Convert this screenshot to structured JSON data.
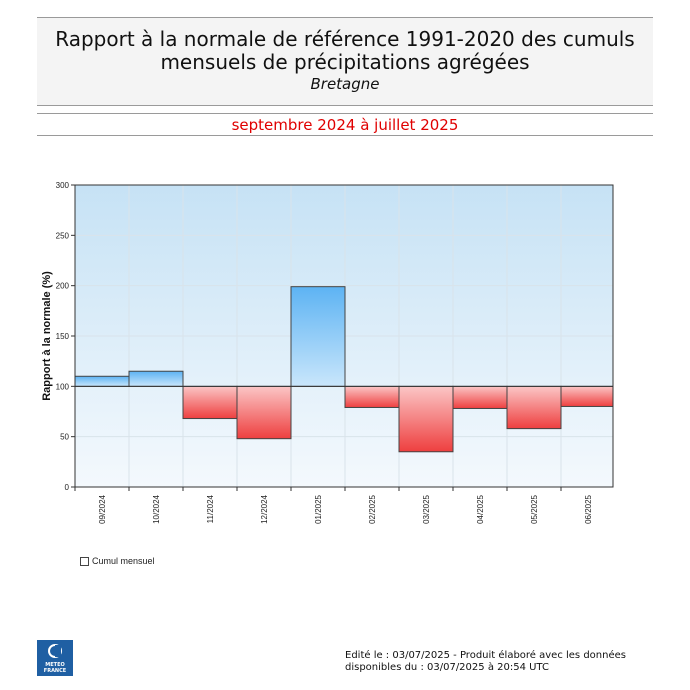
{
  "header": {
    "title_line1": "Rapport à la normale de référence 1991-2020 des cumuls",
    "title_line2": "mensuels de précipitations agrégées",
    "region": "Bretagne",
    "period": "septembre 2024 à juillet 2025"
  },
  "chart_data": {
    "type": "bar",
    "ylabel": "Rapport à la normale (%)",
    "xlabel": "",
    "ylim": [
      0,
      300
    ],
    "yticks": [
      0,
      50,
      100,
      150,
      200,
      250,
      300
    ],
    "baseline": 100,
    "grid": true,
    "categories": [
      "09/2024",
      "10/2024",
      "11/2024",
      "12/2024",
      "01/2025",
      "02/2025",
      "03/2025",
      "04/2025",
      "05/2025",
      "06/2025"
    ],
    "series": [
      {
        "name": "Cumul mensuel",
        "values": [
          110,
          115,
          68,
          48,
          199,
          79,
          35,
          78,
          58,
          80
        ]
      }
    ],
    "legend_position": "bottom-left",
    "colors": {
      "above": "#5fb4f2",
      "below": "#f04848",
      "bg_top": "#c8e3f5",
      "bg_bottom": "#f2f8fd"
    }
  },
  "legend": {
    "label": "Cumul mensuel"
  },
  "logo": {
    "line1": "METEO",
    "line2": "FRANCE"
  },
  "footer": {
    "line1": "Edité le : 03/07/2025 - Produit élaboré avec les données",
    "line2": "disponibles du : 03/07/2025 à 20:54 UTC"
  }
}
